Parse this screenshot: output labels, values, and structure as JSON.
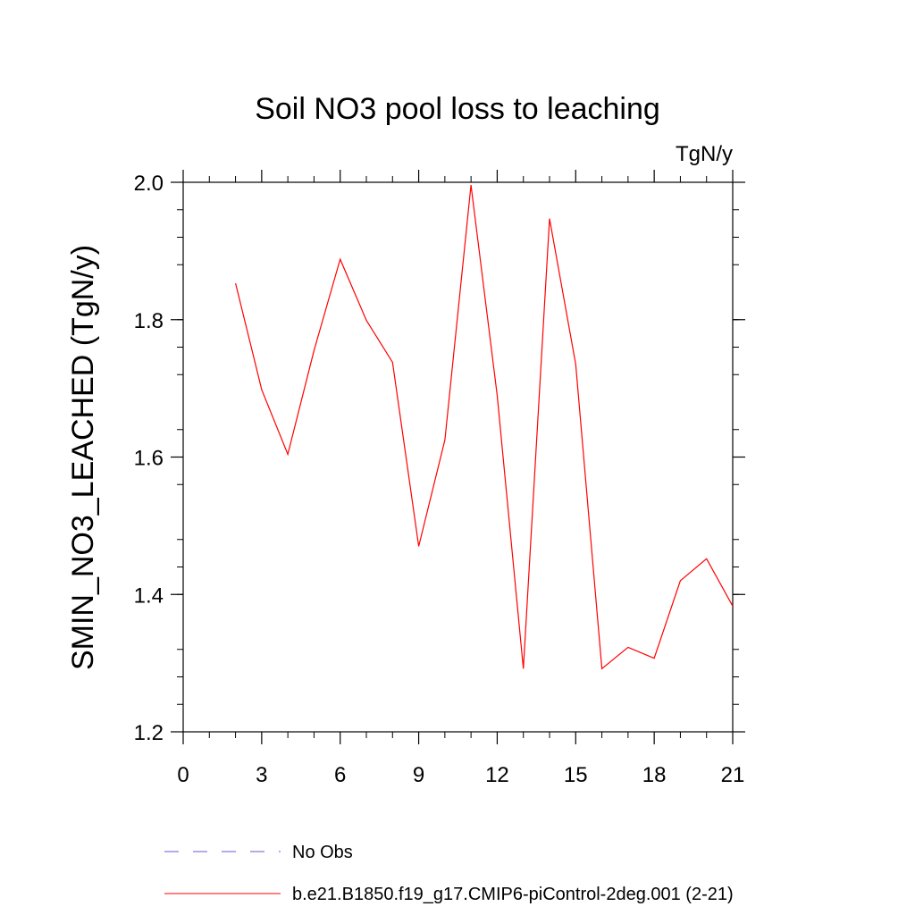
{
  "chart_data": {
    "type": "line",
    "title": "Soil NO3 pool loss to leaching",
    "units": "TgN/y",
    "ylabel": "SMIN_NO3_LEACHED  (TgN/y)",
    "xlabel": "",
    "xlim": [
      0,
      21
    ],
    "ylim": [
      1.2,
      2.0
    ],
    "xticks": [
      0,
      3,
      6,
      9,
      12,
      15,
      18,
      21
    ],
    "yticks": [
      1.2,
      1.4,
      1.6,
      1.8,
      2.0
    ],
    "ytick_labels": [
      "1.2",
      "1.4",
      "1.6",
      "1.8",
      "2.0"
    ],
    "grid": false,
    "legend_position": "bottom",
    "series": [
      {
        "name": "b.e21.B1850.f19_g17.CMIP6-piControl-2deg.001 (2-21)",
        "color": "#ff0000",
        "style": "solid",
        "x": [
          2,
          3,
          4,
          5,
          6,
          7,
          8,
          9,
          10,
          11,
          12,
          13,
          14,
          15,
          16,
          17,
          18,
          19,
          20,
          21
        ],
        "values": [
          1.853,
          1.698,
          1.604,
          1.755,
          1.888,
          1.799,
          1.738,
          1.47,
          1.625,
          1.996,
          1.69,
          1.292,
          1.947,
          1.735,
          1.292,
          1.323,
          1.307,
          1.42,
          1.452,
          1.383
        ]
      }
    ],
    "legend": [
      {
        "label": "No Obs",
        "color": "#6a5acd",
        "style": "dashed"
      },
      {
        "label": "b.e21.B1850.f19_g17.CMIP6-piControl-2deg.001 (2-21)",
        "color": "#ff0000",
        "style": "solid"
      }
    ]
  }
}
